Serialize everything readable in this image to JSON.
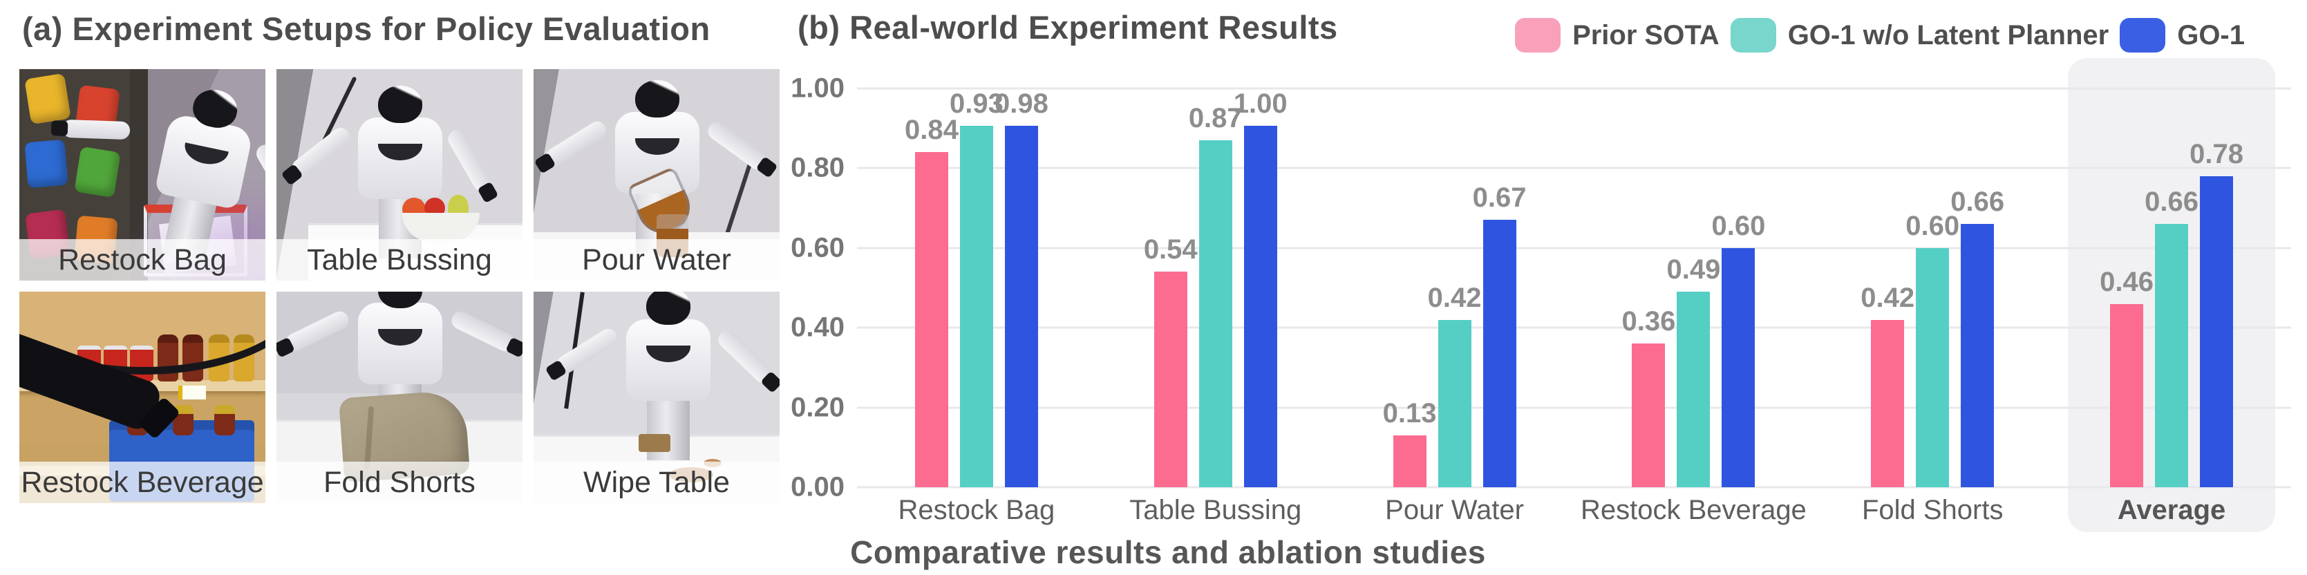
{
  "panel_a": {
    "title": "(a) Experiment Setups for Policy Evaluation",
    "photos": [
      {
        "label": "Restock Bag"
      },
      {
        "label": "Table Bussing"
      },
      {
        "label": "Pour Water"
      },
      {
        "label": "Restock Beverage"
      },
      {
        "label": "Fold Shorts"
      },
      {
        "label": "Wipe Table"
      }
    ]
  },
  "panel_b": {
    "title": "(b) Real-world Experiment Results",
    "caption": "Comparative results and ablation studies"
  },
  "chart_data": {
    "type": "bar",
    "title": "(b) Real-world Experiment Results",
    "categories": [
      "Restock Bag",
      "Table Bussing",
      "Pour Water",
      "Restock Beverage",
      "Fold Shorts",
      "Average"
    ],
    "series": [
      {
        "name": "Prior SOTA",
        "color": "#FB6C90",
        "legend_color": "#F9A0BB",
        "values": [
          0.84,
          0.54,
          0.13,
          0.36,
          0.42,
          0.46
        ]
      },
      {
        "name": "GO-1 w/o Latent Planner",
        "color": "#55CFC4",
        "legend_color": "#78D6CC",
        "values": [
          0.93,
          0.87,
          0.42,
          0.49,
          0.6,
          0.66
        ]
      },
      {
        "name": "GO-1",
        "color": "#2F55E0",
        "legend_color": "#3B5FE4",
        "values": [
          0.98,
          1.0,
          0.67,
          0.6,
          0.66,
          0.78
        ]
      }
    ],
    "ylim": [
      0,
      1
    ],
    "yticks": [
      "0.00",
      "0.20",
      "0.40",
      "0.60",
      "0.80",
      "1.00"
    ],
    "value_label_decimals": 2,
    "grid": true,
    "gridline_color": "#E8E8EB",
    "legend_position": "top-right",
    "highlight_category": "Average",
    "highlight_bg": "#F1F1F4",
    "xlabel": "",
    "ylabel": ""
  }
}
